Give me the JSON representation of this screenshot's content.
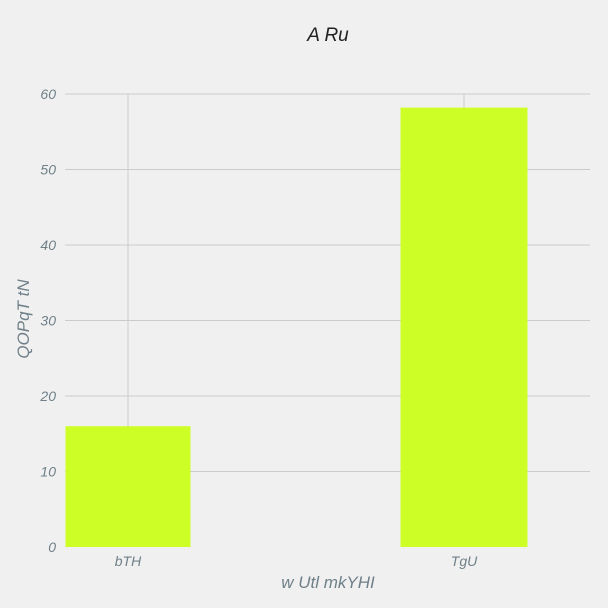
{
  "chart_data": {
    "type": "bar",
    "title": "A Ru",
    "xlabel": "w Utl mkYHI",
    "ylabel": "QOPqT  tN",
    "categories": [
      "bTH",
      "TgU"
    ],
    "values": [
      16,
      58.2
    ],
    "ylim": [
      0,
      60
    ],
    "yticks": [
      0,
      10,
      20,
      30,
      40,
      50,
      60
    ],
    "grid": true,
    "bar_color": "#cdff26",
    "grid_color": "#cbcbcb",
    "text_color": "#6f8088",
    "background": "#f0f0f0"
  }
}
